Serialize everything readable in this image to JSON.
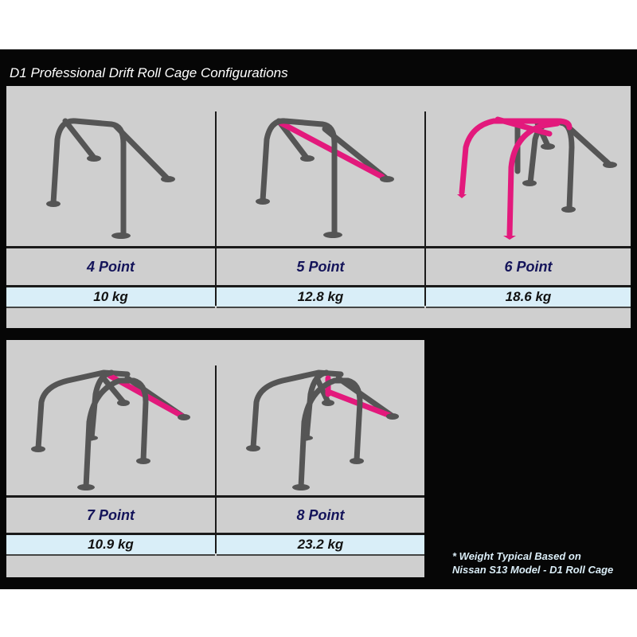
{
  "title": "D1 Professional Drift Roll Cage Configurations",
  "configurations": [
    {
      "label": "4 Point",
      "weight": "10 kg"
    },
    {
      "label": "5 Point",
      "weight": "12.8 kg"
    },
    {
      "label": "6 Point",
      "weight": "18.6 kg"
    },
    {
      "label": "7 Point",
      "weight": "10.9 kg"
    },
    {
      "label": "8 Point",
      "weight": "23.2 kg"
    }
  ],
  "note": {
    "line1": "* Weight Typical Based on",
    "line2": "Nissan S13 Model - D1 Roll Cage"
  },
  "colors": {
    "background": "#060606",
    "panel": "#cfcfcf",
    "weight_row": "#d9eef8",
    "label_text": "#14145a",
    "highlight_tube": "#e3197c",
    "tube": "#555555"
  }
}
